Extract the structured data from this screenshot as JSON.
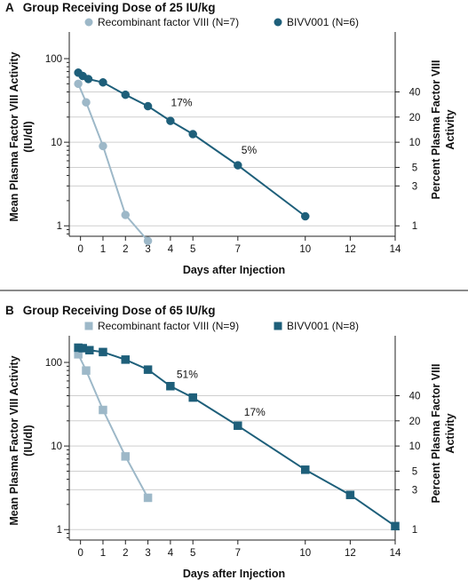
{
  "chart_data": [
    {
      "type": "line",
      "panel_letter": "A",
      "title": "Group Receiving Dose of 25 IU/kg",
      "xlabel": "Days after Injection",
      "ylabel_left": "Mean Plasma Factor VIII Activity (IU/dl)",
      "ylabel_left_lines": [
        "Mean Plasma Factor VIII Activity",
        "(IU/dl)"
      ],
      "ylabel_right": "Percent Plasma Factor VIII Activity",
      "ylabel_right_lines": [
        "Percent Plasma Factor VIII",
        "Activity"
      ],
      "yscale": "log",
      "xlim": [
        -0.5,
        14
      ],
      "ylim": [
        0.75,
        180
      ],
      "x_ticks": [
        0,
        1,
        2,
        3,
        4,
        5,
        7,
        10,
        12,
        14
      ],
      "y_left_ticks": [
        {
          "value": 1,
          "label": "1"
        },
        {
          "value": 10,
          "label": "10"
        },
        {
          "value": 100,
          "label": "100"
        }
      ],
      "y_right_ticks": [
        {
          "value": 40,
          "label": "40"
        },
        {
          "value": 20,
          "label": "20"
        },
        {
          "value": 10,
          "label": "10"
        },
        {
          "value": 5,
          "label": "5"
        },
        {
          "value": 3,
          "label": "3"
        },
        {
          "value": 1,
          "label": "1"
        }
      ],
      "grid": "horizontal at right-axis ticks",
      "legend_position": "top",
      "series": [
        {
          "name": "Recombinant factor VIII (N=7)",
          "marker": "circle",
          "color": "#9db8c8",
          "x": [
            -0.1,
            0.25,
            1,
            2,
            3
          ],
          "y": [
            50,
            30,
            9,
            1.35,
            0.66
          ]
        },
        {
          "name": "BIVV001 (N=6)",
          "marker": "circle",
          "color": "#1e5f7a",
          "x": [
            -0.1,
            0.1,
            0.35,
            1,
            2,
            3,
            4,
            5,
            7,
            10
          ],
          "y": [
            68,
            62,
            57,
            52,
            37,
            27,
            18,
            12.5,
            5.3,
            1.3
          ]
        }
      ],
      "annotations": [
        {
          "text": "17%",
          "x": 4.5,
          "y": 27
        },
        {
          "text": "5%",
          "x": 7.5,
          "y": 7.3
        }
      ]
    },
    {
      "type": "line",
      "panel_letter": "B",
      "title": "Group Receiving Dose of 65 IU/kg",
      "xlabel": "Days after Injection",
      "ylabel_left": "Mean Plasma Factor VIII Activity (IU/dl)",
      "ylabel_left_lines": [
        "Mean Plasma Factor VIII Activity",
        "(IU/dl)"
      ],
      "ylabel_right": "Percent Plasma Factor VIII Activity",
      "ylabel_right_lines": [
        "Percent Plasma Factor VIII",
        "Activity"
      ],
      "yscale": "log",
      "xlim": [
        -0.5,
        14
      ],
      "ylim": [
        0.75,
        180
      ],
      "x_ticks": [
        0,
        1,
        2,
        3,
        4,
        5,
        7,
        10,
        12,
        14
      ],
      "y_left_ticks": [
        {
          "value": 1,
          "label": "1"
        },
        {
          "value": 10,
          "label": "10"
        },
        {
          "value": 100,
          "label": "100"
        }
      ],
      "y_right_ticks": [
        {
          "value": 40,
          "label": "40"
        },
        {
          "value": 20,
          "label": "20"
        },
        {
          "value": 10,
          "label": "10"
        },
        {
          "value": 5,
          "label": "5"
        },
        {
          "value": 3,
          "label": "3"
        },
        {
          "value": 1,
          "label": "1"
        }
      ],
      "grid": "horizontal at right-axis ticks",
      "legend_position": "top",
      "series": [
        {
          "name": "Recombinant factor VIII (N=9)",
          "marker": "square",
          "color": "#9db8c8",
          "x": [
            -0.1,
            0.25,
            1,
            2,
            3
          ],
          "y": [
            125,
            80,
            27,
            7.5,
            2.4
          ]
        },
        {
          "name": "BIVV001 (N=8)",
          "marker": "square",
          "color": "#1e5f7a",
          "x": [
            -0.1,
            0.1,
            0.4,
            1,
            2,
            3,
            4,
            5,
            7,
            10,
            12,
            14
          ],
          "y": [
            150,
            148,
            140,
            133,
            108,
            82,
            52,
            38,
            17.5,
            5.2,
            2.6,
            1.1
          ]
        }
      ],
      "annotations": [
        {
          "text": "51%",
          "x": 4.75,
          "y": 65
        },
        {
          "text": "17%",
          "x": 7.75,
          "y": 23
        }
      ]
    }
  ]
}
